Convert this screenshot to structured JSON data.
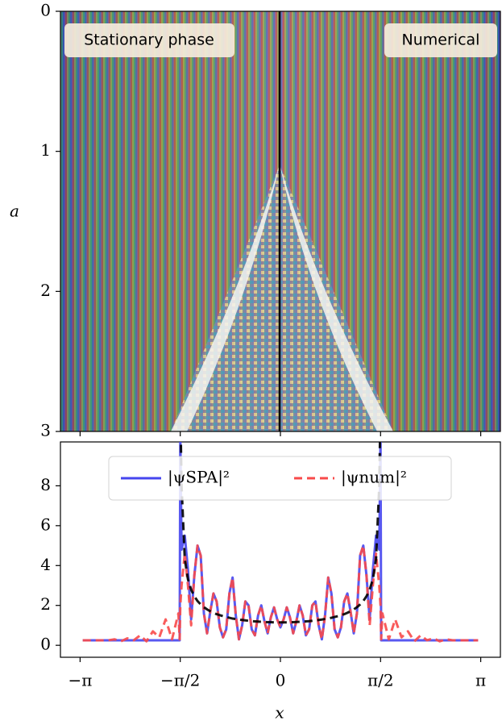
{
  "chart_data": [
    {
      "type": "image",
      "ylabel": "a",
      "ylim": [
        3,
        0
      ],
      "yticks": [
        0,
        1,
        2,
        3
      ],
      "annotations": [
        "Stationary phase",
        "Numerical"
      ]
    },
    {
      "type": "line",
      "xlabel": "x",
      "xlim": [
        -3.45,
        3.45
      ],
      "ylim": [
        -0.6,
        10.2
      ],
      "xticks": [
        {
          "value": -3.1416,
          "label": "−π"
        },
        {
          "value": -1.5708,
          "label": "−π/2"
        },
        0,
        {
          "value": 1.5708,
          "label": "π/2"
        },
        {
          "value": 3.1416,
          "label": "π"
        }
      ],
      "yticks": [
        0,
        2,
        4,
        6,
        8
      ],
      "legend": "upper center",
      "x": [
        -3.1,
        -3.0,
        -2.9,
        -2.8,
        -2.7,
        -2.6,
        -2.5,
        -2.4,
        -2.3,
        -2.2,
        -2.1,
        -2.0,
        -1.9,
        -1.8,
        -1.7,
        -1.6,
        -1.58,
        -1.57,
        -1.55,
        -1.5,
        -1.45,
        -1.4,
        -1.35,
        -1.3,
        -1.25,
        -1.2,
        -1.15,
        -1.1,
        -1.05,
        -1.0,
        -0.95,
        -0.9,
        -0.85,
        -0.8,
        -0.75,
        -0.7,
        -0.65,
        -0.6,
        -0.55,
        -0.5,
        -0.45,
        -0.4,
        -0.35,
        -0.3,
        -0.25,
        -0.2,
        -0.15,
        -0.1,
        -0.05,
        0,
        0.05,
        0.1,
        0.15,
        0.2,
        0.25,
        0.3,
        0.35,
        0.4,
        0.45,
        0.5,
        0.55,
        0.6,
        0.65,
        0.7,
        0.75,
        0.8,
        0.85,
        0.9,
        0.95,
        1.0,
        1.05,
        1.1,
        1.15,
        1.2,
        1.25,
        1.3,
        1.35,
        1.4,
        1.45,
        1.5,
        1.55,
        1.57,
        1.58,
        1.6,
        1.7,
        1.8,
        1.9,
        2.0,
        2.1,
        2.2,
        2.3,
        2.4,
        2.5,
        2.6,
        2.7,
        2.8,
        2.9,
        3.0,
        3.1
      ],
      "series": [
        {
          "name": "|ψSPA|²",
          "color": "#4646ee",
          "dash": false,
          "values": [
            0.25,
            0.25,
            0.25,
            0.25,
            0.25,
            0.25,
            0.25,
            0.25,
            0.25,
            0.25,
            0.25,
            0.25,
            0.25,
            0.25,
            0.25,
            0.25,
            0.25,
            10.5,
            4.8,
            5.5,
            3.8,
            1.3,
            3.5,
            5.0,
            4.5,
            1.6,
            0.6,
            1.7,
            2.6,
            2.2,
            0.9,
            0.4,
            0.8,
            2.6,
            3.4,
            1.5,
            0.3,
            1.0,
            2.2,
            2.0,
            0.8,
            0.5,
            1.5,
            2.0,
            1.2,
            0.6,
            1.4,
            1.9,
            1.3,
            0.9,
            1.3,
            1.9,
            1.4,
            0.6,
            1.2,
            2.0,
            1.5,
            0.5,
            0.8,
            2.0,
            2.2,
            1.0,
            0.3,
            1.5,
            3.4,
            2.6,
            0.8,
            0.4,
            0.9,
            2.2,
            2.6,
            1.7,
            0.6,
            1.6,
            4.5,
            5.0,
            3.5,
            1.3,
            3.8,
            5.5,
            4.8,
            10.5,
            0.25,
            0.25,
            0.25,
            0.25,
            0.25,
            0.25,
            0.25,
            0.25,
            0.25,
            0.25,
            0.25,
            0.25,
            0.25,
            0.25,
            0.25,
            0.25,
            0.25
          ]
        },
        {
          "name": "|ψnum|²",
          "color": "#f84a4a",
          "dash": true,
          "values": [
            0.25,
            0.25,
            0.25,
            0.25,
            0.25,
            0.3,
            0.2,
            0.35,
            0.25,
            0.5,
            0.2,
            0.7,
            0.4,
            1.3,
            0.3,
            1.6,
            0.3,
            2.0,
            3.0,
            4.6,
            3.0,
            1.0,
            3.5,
            5.0,
            4.5,
            1.6,
            0.6,
            1.7,
            2.6,
            2.2,
            0.9,
            0.4,
            0.8,
            2.6,
            3.4,
            1.5,
            0.3,
            1.0,
            2.2,
            2.0,
            0.8,
            0.5,
            1.5,
            2.0,
            1.2,
            0.6,
            1.4,
            1.9,
            1.3,
            0.9,
            1.3,
            1.9,
            1.4,
            0.6,
            1.2,
            2.0,
            1.5,
            0.5,
            0.8,
            2.0,
            2.2,
            1.0,
            0.3,
            1.5,
            3.4,
            2.6,
            0.8,
            0.4,
            0.9,
            2.2,
            2.6,
            1.7,
            0.6,
            1.6,
            4.5,
            5.0,
            3.5,
            1.0,
            3.0,
            4.6,
            3.0,
            2.0,
            0.3,
            1.6,
            0.3,
            1.3,
            0.4,
            0.7,
            0.2,
            0.5,
            0.25,
            0.35,
            0.2,
            0.3,
            0.25,
            0.25,
            0.25,
            0.25,
            0.25
          ]
        },
        {
          "color": "#000000",
          "dash": true,
          "values": [
            null,
            null,
            null,
            null,
            null,
            null,
            null,
            null,
            null,
            null,
            null,
            null,
            null,
            null,
            null,
            null,
            null,
            12,
            7.98,
            4.33,
            3.31,
            2.79,
            2.46,
            2.22,
            2.05,
            1.91,
            1.8,
            1.71,
            1.63,
            1.56,
            1.51,
            1.46,
            1.42,
            1.38,
            1.34,
            1.32,
            1.29,
            1.27,
            1.25,
            1.23,
            1.21,
            1.2,
            1.19,
            1.18,
            1.17,
            1.16,
            1.16,
            1.15,
            1.15,
            1.15,
            1.15,
            1.15,
            1.16,
            1.16,
            1.17,
            1.18,
            1.19,
            1.2,
            1.21,
            1.23,
            1.25,
            1.27,
            1.29,
            1.32,
            1.34,
            1.38,
            1.42,
            1.46,
            1.51,
            1.56,
            1.63,
            1.71,
            1.8,
            1.91,
            2.05,
            2.22,
            2.46,
            2.79,
            3.31,
            4.33,
            7.98,
            12,
            null,
            null,
            null,
            null,
            null,
            null,
            null,
            null,
            null,
            null,
            null,
            null,
            null,
            null,
            null,
            null,
            null
          ]
        }
      ]
    }
  ]
}
